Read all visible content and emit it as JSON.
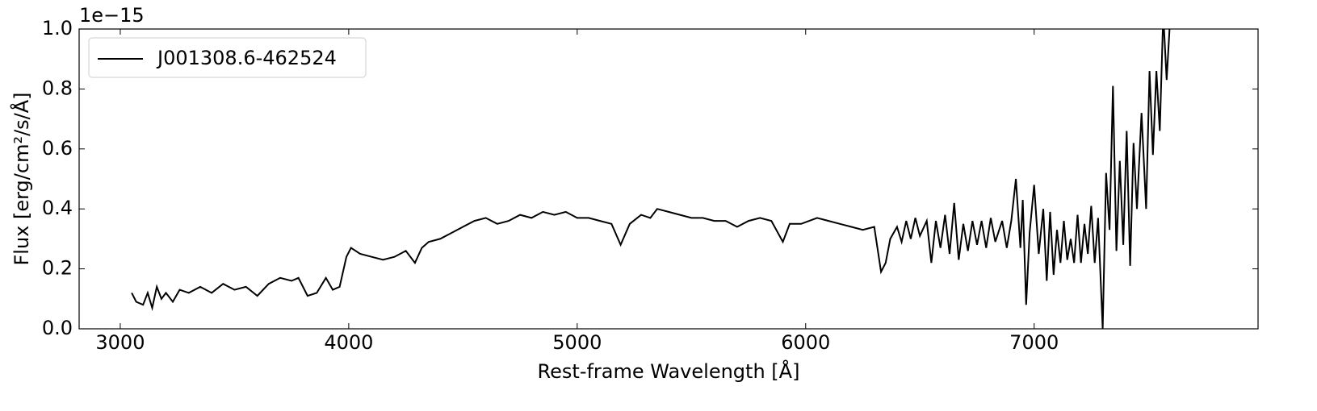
{
  "chart_data": {
    "type": "line",
    "x_label": "Rest-frame Wavelength [Å]",
    "y_label": "Flux [erg/cm²/s/Å]",
    "y_offset_text": "1e−15",
    "x": [
      3050,
      3070,
      3100,
      3120,
      3140,
      3160,
      3180,
      3200,
      3230,
      3260,
      3300,
      3350,
      3400,
      3450,
      3500,
      3550,
      3600,
      3650,
      3700,
      3750,
      3780,
      3820,
      3860,
      3900,
      3930,
      3960,
      3990,
      4010,
      4050,
      4100,
      4150,
      4200,
      4250,
      4290,
      4320,
      4350,
      4400,
      4450,
      4500,
      4550,
      4600,
      4650,
      4700,
      4750,
      4800,
      4850,
      4900,
      4950,
      5000,
      5050,
      5100,
      5150,
      5190,
      5230,
      5280,
      5320,
      5350,
      5400,
      5450,
      5500,
      5550,
      5600,
      5650,
      5700,
      5750,
      5800,
      5850,
      5900,
      5930,
      5980,
      6050,
      6100,
      6150,
      6200,
      6250,
      6300,
      6330,
      6350,
      6370,
      6400,
      6420,
      6440,
      6460,
      6480,
      6500,
      6530,
      6550,
      6570,
      6590,
      6610,
      6630,
      6650,
      6670,
      6690,
      6710,
      6730,
      6750,
      6770,
      6790,
      6810,
      6830,
      6860,
      6880,
      6900,
      6920,
      6940,
      6950,
      6965,
      6980,
      7000,
      7020,
      7040,
      7055,
      7070,
      7085,
      7100,
      7115,
      7130,
      7145,
      7160,
      7175,
      7190,
      7205,
      7220,
      7235,
      7250,
      7265,
      7280,
      7300,
      7315,
      7330,
      7345,
      7360,
      7375,
      7390,
      7405,
      7420,
      7435,
      7450,
      7470,
      7490,
      7505,
      7520,
      7535,
      7550,
      7565,
      7580,
      7600
    ],
    "series": [
      {
        "name": "J001308.6-462524",
        "color": "#000000",
        "values": [
          0.12,
          0.09,
          0.08,
          0.12,
          0.07,
          0.14,
          0.1,
          0.12,
          0.09,
          0.13,
          0.12,
          0.14,
          0.12,
          0.15,
          0.13,
          0.14,
          0.11,
          0.15,
          0.17,
          0.16,
          0.17,
          0.11,
          0.12,
          0.17,
          0.13,
          0.14,
          0.24,
          0.27,
          0.25,
          0.24,
          0.23,
          0.24,
          0.26,
          0.22,
          0.27,
          0.29,
          0.3,
          0.32,
          0.34,
          0.36,
          0.37,
          0.35,
          0.36,
          0.38,
          0.37,
          0.39,
          0.38,
          0.39,
          0.37,
          0.37,
          0.36,
          0.35,
          0.28,
          0.35,
          0.38,
          0.37,
          0.4,
          0.39,
          0.38,
          0.37,
          0.37,
          0.36,
          0.36,
          0.34,
          0.36,
          0.37,
          0.36,
          0.29,
          0.35,
          0.35,
          0.37,
          0.36,
          0.35,
          0.34,
          0.33,
          0.34,
          0.19,
          0.22,
          0.3,
          0.34,
          0.29,
          0.36,
          0.3,
          0.37,
          0.31,
          0.36,
          0.22,
          0.36,
          0.27,
          0.38,
          0.25,
          0.42,
          0.23,
          0.35,
          0.26,
          0.36,
          0.28,
          0.36,
          0.27,
          0.37,
          0.29,
          0.36,
          0.27,
          0.36,
          0.5,
          0.27,
          0.43,
          0.08,
          0.32,
          0.48,
          0.25,
          0.4,
          0.16,
          0.39,
          0.18,
          0.33,
          0.22,
          0.36,
          0.23,
          0.3,
          0.22,
          0.38,
          0.22,
          0.35,
          0.25,
          0.41,
          0.22,
          0.37,
          0.0,
          0.52,
          0.33,
          0.81,
          0.26,
          0.56,
          0.28,
          0.66,
          0.21,
          0.62,
          0.4,
          0.72,
          0.4,
          0.86,
          0.58,
          0.86,
          0.66,
          1.05,
          0.83,
          1.1
        ]
      }
    ],
    "xlim": [
      2820,
      7980
    ],
    "ylim": [
      0,
      1
    ],
    "xticks": [
      3000,
      4000,
      5000,
      6000,
      7000
    ],
    "yticks": [
      {
        "value": 0,
        "label": "0.0"
      },
      {
        "value": 0.2,
        "label": "0.2"
      },
      {
        "value": 0.4,
        "label": "0.4"
      },
      {
        "value": 0.6,
        "label": "0.6"
      },
      {
        "value": 0.8,
        "label": "0.8"
      },
      {
        "value": 1,
        "label": "1.0"
      }
    ],
    "legend": "upper left",
    "grid": false
  }
}
